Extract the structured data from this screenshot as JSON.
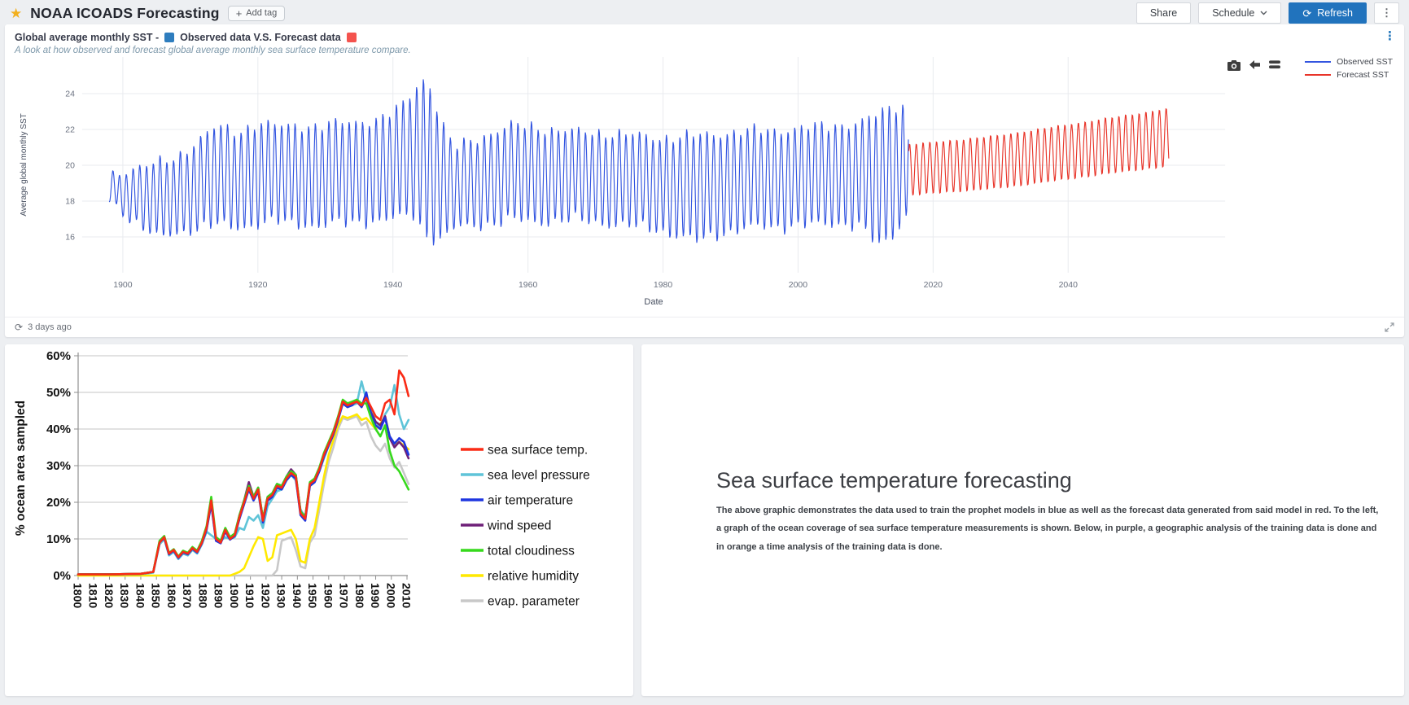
{
  "icons": {
    "star": "★",
    "kebab": "⋮",
    "plus": "+",
    "refresh": "⟳",
    "history": "⟳"
  },
  "header": {
    "title": "NOAA ICOADS Forecasting",
    "add_tag_label": "Add tag",
    "share_label": "Share",
    "schedule_label": "Schedule",
    "refresh_label": "Refresh",
    "star_color": "#f2b01e",
    "refresh_button_color": "#2173bd"
  },
  "card1": {
    "title_prefix": "Global average monthly SST -",
    "title_suffix": "Observed data V.S. Forecast data",
    "observed_swatch_color": "#2e7dbe",
    "forecast_swatch_color": "#f4534e",
    "subtitle": "A look at how observed and forecast global average monthly sea surface temperature compare.",
    "footer_updated": "3 days ago"
  },
  "panel_text": {
    "heading": "Sea surface temperature forecasting",
    "body": "The above graphic demonstrates the data used to train the prophet models in blue as well as the forecast data generated from said model in red. To the left, a graph of the ocean coverage of sea surface temperature measurements is shown. Below, in purple, a geographic analysis of the training data is done and in orange a time analysis of the training data is done."
  },
  "chart_data": [
    {
      "id": "sst_forecast",
      "type": "line",
      "title": "Global average monthly SST - Observed data V.S. Forecast data",
      "xlabel": "Date",
      "ylabel": "Average global monthly SST",
      "xlim": [
        1893,
        2060
      ],
      "ylim": [
        14.0,
        26.0
      ],
      "x_ticks": [
        1900,
        1920,
        1940,
        1960,
        1980,
        2000,
        2020,
        2040
      ],
      "y_ticks": [
        16,
        18,
        20,
        22,
        24
      ],
      "grid": true,
      "legend_position": "top-right",
      "representation": "monthly seasonal cycle; each series oscillates yearly between interpolated envelope [year, seasonal_min, seasonal_max]",
      "series": [
        {
          "name": "Observed SST",
          "color": "#3355e0",
          "noise": 1,
          "envelope": [
            [
              1898,
              18.0,
              19.4
            ],
            [
              1900,
              17.4,
              19.7
            ],
            [
              1902,
              16.7,
              19.9
            ],
            [
              1905,
              15.9,
              20.1
            ],
            [
              1908,
              16.2,
              20.5
            ],
            [
              1911,
              16.4,
              21.4
            ],
            [
              1914,
              16.6,
              22.2
            ],
            [
              1917,
              16.5,
              21.9
            ],
            [
              1920,
              16.6,
              22.4
            ],
            [
              1923,
              16.8,
              22.2
            ],
            [
              1926,
              16.7,
              22.3
            ],
            [
              1929,
              16.5,
              22.2
            ],
            [
              1932,
              16.7,
              22.4
            ],
            [
              1935,
              16.8,
              22.5
            ],
            [
              1938,
              16.8,
              22.6
            ],
            [
              1941,
              17.0,
              23.2
            ],
            [
              1943,
              17.2,
              24.2
            ],
            [
              1945,
              16.0,
              25.1
            ],
            [
              1947,
              15.7,
              22.6
            ],
            [
              1949,
              16.4,
              21.0
            ],
            [
              1952,
              16.6,
              21.5
            ],
            [
              1955,
              16.7,
              21.9
            ],
            [
              1958,
              16.9,
              22.3
            ],
            [
              1961,
              16.8,
              22.2
            ],
            [
              1964,
              16.8,
              22.0
            ],
            [
              1967,
              16.9,
              21.9
            ],
            [
              1970,
              16.8,
              21.9
            ],
            [
              1973,
              16.6,
              21.8
            ],
            [
              1976,
              16.5,
              21.7
            ],
            [
              1979,
              16.4,
              21.6
            ],
            [
              1982,
              16.0,
              21.6
            ],
            [
              1985,
              15.7,
              21.7
            ],
            [
              1988,
              16.1,
              21.8
            ],
            [
              1991,
              16.3,
              21.9
            ],
            [
              1994,
              16.5,
              22.0
            ],
            [
              1997,
              16.5,
              22.0
            ],
            [
              2000,
              16.6,
              22.1
            ],
            [
              2003,
              16.6,
              22.2
            ],
            [
              2006,
              16.7,
              22.3
            ],
            [
              2009,
              16.6,
              22.4
            ],
            [
              2012,
              15.4,
              22.9
            ],
            [
              2014,
              16.0,
              23.4
            ],
            [
              2016.4,
              17.4,
              23.3
            ]
          ]
        },
        {
          "name": "Forecast SST",
          "color": "#e8352a",
          "noise": 0.12,
          "envelope": [
            [
              2016.4,
              18.3,
              21.2
            ],
            [
              2020,
              18.4,
              21.3
            ],
            [
              2030,
              18.7,
              21.7
            ],
            [
              2040,
              19.2,
              22.3
            ],
            [
              2050,
              19.7,
              22.9
            ],
            [
              2054.9,
              19.9,
              23.2
            ]
          ]
        }
      ]
    },
    {
      "id": "ocean_coverage",
      "type": "line",
      "title": "",
      "xlabel": "",
      "ylabel": "% ocean area sampled",
      "ylim": [
        0,
        60
      ],
      "y_tick_labels": [
        "0%",
        "10%",
        "20%",
        "30%",
        "40%",
        "50%",
        "60%"
      ],
      "x_ticks": [
        1800,
        1810,
        1820,
        1830,
        1840,
        1850,
        1860,
        1870,
        1880,
        1890,
        1900,
        1910,
        1920,
        1930,
        1940,
        1950,
        1960,
        1970,
        1980,
        1990,
        2000,
        2010
      ],
      "grid": true,
      "legend_position": "right",
      "x": [
        1800,
        1810,
        1820,
        1830,
        1840,
        1848,
        1852,
        1855,
        1858,
        1861,
        1864,
        1867,
        1870,
        1873,
        1876,
        1879,
        1882,
        1885,
        1888,
        1891,
        1894,
        1897,
        1900,
        1903,
        1906,
        1909,
        1912,
        1915,
        1918,
        1921,
        1924,
        1927,
        1930,
        1933,
        1936,
        1939,
        1942,
        1945,
        1948,
        1951,
        1954,
        1957,
        1960,
        1963,
        1966,
        1969,
        1972,
        1975,
        1978,
        1981,
        1984,
        1987,
        1990,
        1993,
        1996,
        1999,
        2002,
        2005,
        2008,
        2011
      ],
      "series": [
        {
          "name": "sea surface temp.",
          "color": "#fa2b16",
          "z": 7,
          "values": [
            0.3,
            0.3,
            0.3,
            0.4,
            0.5,
            1.0,
            9.0,
            10.5,
            6.0,
            7.0,
            5.0,
            6.5,
            6.0,
            7.5,
            6.5,
            9.0,
            13.0,
            20.5,
            10.0,
            9.0,
            12.5,
            10.0,
            11.0,
            16.0,
            20.0,
            24.0,
            21.0,
            23.5,
            15.0,
            21.0,
            22.0,
            24.5,
            24.0,
            26.5,
            28.0,
            27.0,
            17.0,
            15.5,
            25.0,
            26.0,
            29.0,
            33.0,
            36.0,
            39.0,
            43.0,
            47.5,
            46.5,
            47.0,
            47.5,
            46.5,
            48.5,
            46.0,
            43.5,
            42.5,
            47.0,
            48.0,
            44.0,
            56.0,
            54.0,
            49.0
          ]
        },
        {
          "name": "sea level pressure",
          "color": "#5fc4d8",
          "z": 3,
          "values": [
            0.3,
            0.3,
            0.3,
            0.3,
            0.4,
            0.8,
            8.5,
            10.0,
            5.5,
            6.5,
            4.5,
            6.0,
            5.5,
            7.0,
            6.0,
            8.5,
            12.0,
            11.0,
            10.0,
            9.5,
            10.5,
            10.0,
            10.5,
            13.0,
            12.5,
            16.0,
            15.0,
            16.5,
            13.0,
            19.0,
            21.0,
            23.0,
            23.5,
            26.0,
            27.5,
            26.0,
            18.0,
            16.0,
            24.5,
            25.5,
            28.5,
            32.0,
            35.5,
            38.5,
            42.5,
            47.0,
            46.0,
            46.5,
            47.0,
            53.0,
            48.0,
            45.0,
            42.0,
            40.5,
            44.0,
            46.0,
            52.0,
            44.0,
            40.0,
            42.5
          ]
        },
        {
          "name": "air temperature",
          "color": "#1f36e0",
          "z": 5,
          "values": [
            0.3,
            0.3,
            0.3,
            0.4,
            0.5,
            1.0,
            9.0,
            10.3,
            5.8,
            6.8,
            4.8,
            6.3,
            5.8,
            7.3,
            6.3,
            8.8,
            12.5,
            19.5,
            9.5,
            8.8,
            12.0,
            9.8,
            10.8,
            15.5,
            19.5,
            23.5,
            20.5,
            23.0,
            14.5,
            20.5,
            21.5,
            24.0,
            23.5,
            26.0,
            27.5,
            26.5,
            16.5,
            15.0,
            24.5,
            25.5,
            28.5,
            32.5,
            35.5,
            38.5,
            42.5,
            47.0,
            46.0,
            46.5,
            48.0,
            46.0,
            50.0,
            44.0,
            41.0,
            40.0,
            43.0,
            38.0,
            36.0,
            37.5,
            36.5,
            33.0
          ]
        },
        {
          "name": "wind speed",
          "color": "#6f2179",
          "z": 4,
          "values": [
            0.3,
            0.3,
            0.3,
            0.4,
            0.5,
            1.0,
            9.2,
            10.4,
            5.9,
            6.9,
            4.9,
            6.4,
            5.9,
            7.4,
            6.4,
            8.9,
            12.8,
            19.8,
            9.8,
            9.0,
            12.2,
            10.0,
            11.0,
            16.5,
            20.5,
            25.5,
            21.5,
            24.0,
            15.5,
            21.5,
            22.5,
            25.0,
            24.5,
            27.0,
            29.0,
            27.5,
            17.5,
            16.0,
            25.0,
            26.0,
            29.0,
            33.0,
            36.0,
            39.0,
            43.0,
            47.0,
            46.0,
            46.8,
            47.5,
            46.0,
            48.5,
            44.5,
            42.0,
            41.0,
            43.5,
            37.5,
            35.0,
            36.5,
            35.0,
            32.0
          ]
        },
        {
          "name": "total cloudiness",
          "color": "#36d91c",
          "z": 6,
          "values": [
            0.3,
            0.3,
            0.3,
            0.4,
            0.5,
            1.0,
            9.5,
            10.8,
            6.2,
            7.2,
            5.2,
            6.8,
            6.2,
            7.8,
            6.8,
            9.5,
            13.5,
            21.5,
            10.5,
            9.5,
            13.0,
            10.5,
            11.5,
            16.5,
            20.5,
            24.5,
            21.5,
            24.0,
            15.5,
            21.5,
            22.5,
            25.0,
            24.5,
            27.0,
            28.5,
            27.5,
            17.5,
            16.0,
            25.5,
            26.5,
            29.5,
            33.5,
            36.5,
            39.5,
            43.5,
            48.0,
            47.0,
            47.5,
            48.0,
            47.0,
            47.0,
            43.0,
            40.0,
            38.0,
            41.0,
            34.0,
            30.0,
            28.5,
            26.0,
            23.5
          ]
        },
        {
          "name": "relative humidity",
          "color": "#ffe900",
          "z": 2,
          "values": [
            0,
            0,
            0,
            0,
            0,
            0,
            0,
            0,
            0,
            0,
            0,
            0,
            0,
            0,
            0,
            0,
            0,
            0,
            0,
            0,
            0,
            0,
            0.5,
            1.0,
            2.0,
            5.0,
            8.0,
            10.5,
            10.0,
            4.0,
            5.0,
            11.0,
            11.5,
            12.0,
            12.5,
            10.0,
            4.0,
            3.5,
            10.0,
            13.0,
            20.0,
            27.0,
            33.0,
            37.0,
            41.0,
            43.5,
            43.0,
            43.5,
            44.0,
            42.5,
            43.0,
            41.5,
            40.0,
            41.5,
            43.5,
            38.0,
            35.5,
            36.5,
            35.5,
            34.5
          ]
        },
        {
          "name": "evap. parameter",
          "color": "#c8c8c8",
          "z": 1,
          "values": [
            0,
            0,
            0,
            0,
            0,
            0,
            0,
            0,
            0,
            0,
            0,
            0,
            0,
            0,
            0,
            0,
            0,
            0,
            0,
            0,
            0,
            0,
            0,
            0,
            0,
            0,
            0,
            0,
            0,
            0,
            0,
            1.5,
            9.5,
            10.0,
            10.5,
            7.0,
            2.5,
            2.0,
            9.0,
            11.0,
            18.0,
            25.0,
            31.0,
            35.0,
            40.0,
            43.0,
            42.5,
            43.0,
            43.5,
            41.0,
            42.0,
            38.0,
            35.5,
            34.0,
            36.0,
            32.0,
            29.5,
            31.0,
            28.0,
            25.0
          ]
        }
      ]
    }
  ]
}
